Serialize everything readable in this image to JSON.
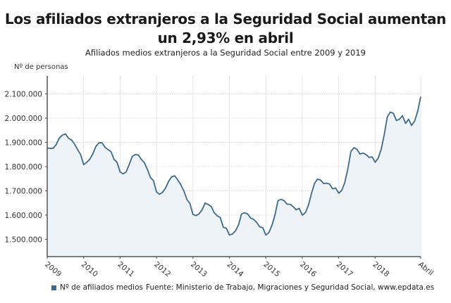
{
  "chart_data": {
    "type": "area",
    "title": "Los afiliados extranjeros a la Seguridad Social aumentan un 2,93% en abril",
    "subtitle": "Afiliados medios extranjeros a la Seguridad Social entre 2009 y 2019",
    "ylabel": "Nº de personas",
    "xlabel": "",
    "ylim": [
      1430000,
      2170000
    ],
    "yticks": [
      {
        "value": 1500000,
        "label": "1.500.000"
      },
      {
        "value": 1600000,
        "label": "1.600.000"
      },
      {
        "value": 1700000,
        "label": "1.700.000"
      },
      {
        "value": 1800000,
        "label": "1.800.000"
      },
      {
        "value": 2000000,
        "label": "2.000.000"
      },
      {
        "value": 1900000,
        "label": "1.900.000"
      },
      {
        "value": 2100000,
        "label": "2.100.000"
      }
    ],
    "xticks": [
      {
        "index": 0,
        "label": "2009"
      },
      {
        "index": 12,
        "label": "2010"
      },
      {
        "index": 24,
        "label": "2011"
      },
      {
        "index": 36,
        "label": "2012"
      },
      {
        "index": 48,
        "label": "2013"
      },
      {
        "index": 60,
        "label": "2014"
      },
      {
        "index": 72,
        "label": "2015"
      },
      {
        "index": 84,
        "label": "2016"
      },
      {
        "index": 96,
        "label": "2017"
      },
      {
        "index": 108,
        "label": "2018"
      },
      {
        "index": 123,
        "label": "Abril"
      }
    ],
    "grid": true,
    "legend_position": "bottom-left",
    "color": "#3d6a8a",
    "fill_color": "#eef3f8",
    "x_start": "2009-01",
    "x_end": "2019-04",
    "x_frequency": "monthly",
    "series": [
      {
        "name": "Nº de afiliados medios",
        "values": [
          1877000,
          1875000,
          1876000,
          1892000,
          1918000,
          1930000,
          1935000,
          1917000,
          1910000,
          1893000,
          1870000,
          1850000,
          1808000,
          1818000,
          1830000,
          1852000,
          1882000,
          1898000,
          1899000,
          1880000,
          1870000,
          1862000,
          1830000,
          1818000,
          1778000,
          1770000,
          1778000,
          1808000,
          1842000,
          1850000,
          1848000,
          1830000,
          1816000,
          1788000,
          1755000,
          1742000,
          1695000,
          1686000,
          1694000,
          1712000,
          1740000,
          1758000,
          1762000,
          1745000,
          1725000,
          1700000,
          1665000,
          1648000,
          1603000,
          1598000,
          1605000,
          1622000,
          1650000,
          1644000,
          1636000,
          1610000,
          1597000,
          1590000,
          1550000,
          1546000,
          1518000,
          1522000,
          1535000,
          1560000,
          1605000,
          1610000,
          1605000,
          1588000,
          1582000,
          1570000,
          1552000,
          1548000,
          1518000,
          1528000,
          1558000,
          1600000,
          1660000,
          1665000,
          1660000,
          1645000,
          1645000,
          1635000,
          1622000,
          1628000,
          1600000,
          1610000,
          1640000,
          1688000,
          1730000,
          1748000,
          1745000,
          1730000,
          1732000,
          1728000,
          1708000,
          1712000,
          1690000,
          1702000,
          1735000,
          1790000,
          1862000,
          1878000,
          1872000,
          1852000,
          1856000,
          1850000,
          1838000,
          1840000,
          1818000,
          1835000,
          1872000,
          1932000,
          2005000,
          2025000,
          2020000,
          1990000,
          1995000,
          2010000,
          1978000,
          1995000,
          1970000,
          1988000,
          2028000,
          2088000
        ]
      }
    ]
  },
  "legend": {
    "label": "Nº de afiliados medios",
    "color": "#3d6a8a"
  },
  "source": "Fuente: Ministerio de Trabajo, Migraciones y Seguridad Social, www.epdata.es"
}
